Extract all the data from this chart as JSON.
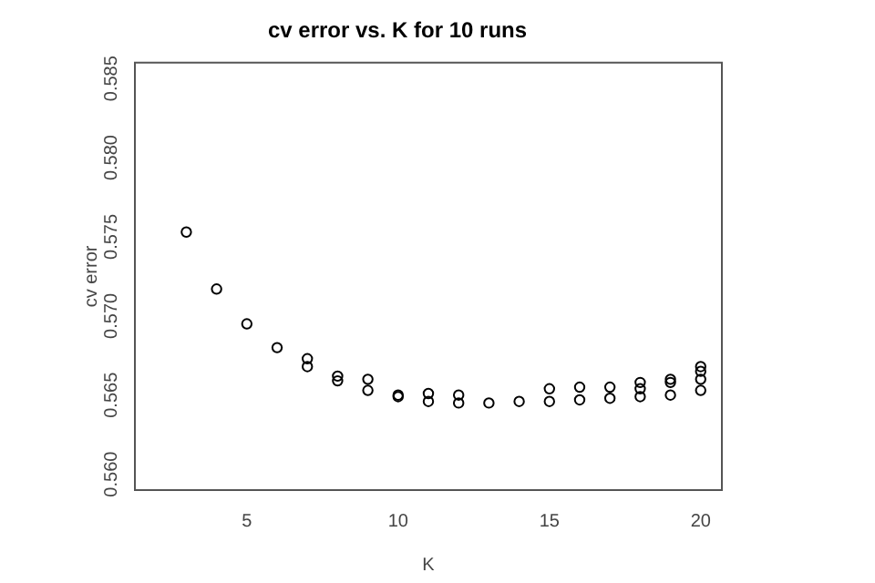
{
  "chart_data": {
    "type": "scatter",
    "title": "cv error vs. K for 10 runs",
    "xlabel": "K",
    "ylabel": "cv error",
    "marker": "circle",
    "grid": false,
    "legend": false,
    "xlim": [
      1.3,
      20.7
    ],
    "xticks": [
      5,
      10,
      15,
      20
    ],
    "ylim": [
      0.559,
      0.586
    ],
    "yticks": [
      {
        "value": 0.56,
        "label": "0.560"
      },
      0.565,
      {
        "value": 0.57,
        "label": "0.570"
      },
      0.575,
      {
        "value": 0.58,
        "label": "0.580"
      },
      0.585
    ],
    "series": [
      {
        "color": "#000000",
        "x": [
          3,
          4,
          5,
          6,
          7,
          7,
          8,
          8,
          9,
          9,
          10,
          10,
          11,
          11,
          12,
          12,
          13,
          14,
          15,
          15,
          16,
          16,
          17,
          17,
          18,
          18,
          18,
          19,
          19,
          19,
          20,
          20,
          20,
          20
        ],
        "values": [
          0.5753,
          0.5717,
          0.5695,
          0.568,
          0.5673,
          0.5668,
          0.5662,
          0.5659,
          0.566,
          0.5653,
          0.5649,
          0.565,
          0.5651,
          0.5646,
          0.565,
          0.5645,
          0.5645,
          0.5646,
          0.5654,
          0.5646,
          0.5655,
          0.5647,
          0.5655,
          0.5648,
          0.5658,
          0.5654,
          0.5649,
          0.566,
          0.5658,
          0.565,
          0.5668,
          0.5665,
          0.566,
          0.5653
        ]
      }
    ]
  }
}
